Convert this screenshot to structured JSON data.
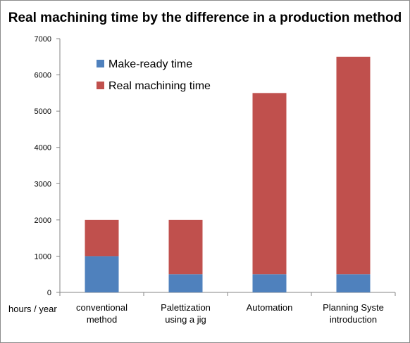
{
  "chart_data": {
    "type": "bar",
    "stacked": true,
    "title": "Real machining  time by the difference in a production  method",
    "unit_label": "hours / year",
    "xlabel": "",
    "ylabel": "",
    "ylim": [
      0,
      7000
    ],
    "yticks": [
      0,
      1000,
      2000,
      3000,
      4000,
      5000,
      6000,
      7000
    ],
    "grid": false,
    "legend_position": "top-left",
    "categories": [
      [
        "conventional",
        "method"
      ],
      [
        "Palettization",
        "using a jig"
      ],
      [
        "Automation"
      ],
      [
        "Planning Syste",
        "introduction"
      ]
    ],
    "series": [
      {
        "name": "Make-ready time",
        "color": "#4f81bd",
        "values": [
          1000,
          500,
          500,
          500
        ]
      },
      {
        "name": "Real machining time",
        "color": "#c0504d",
        "values": [
          1000,
          1500,
          5000,
          6000
        ]
      }
    ]
  }
}
